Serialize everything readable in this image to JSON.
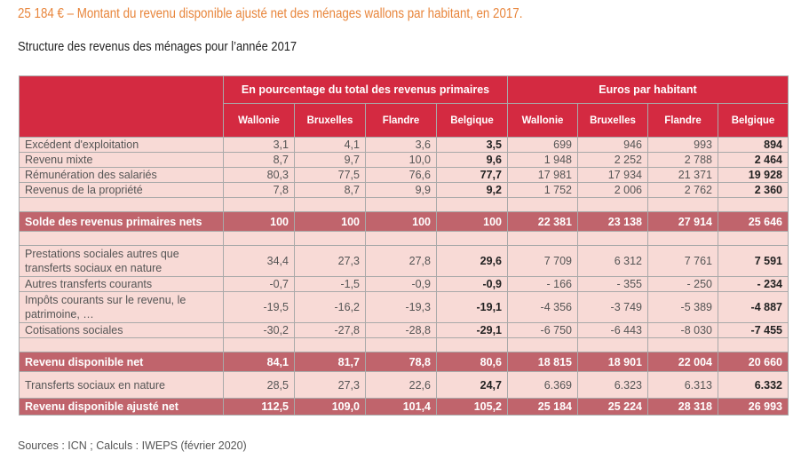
{
  "headline": "25 184 € – Montant du revenu disponible ajusté net des ménages wallons par habitant, en 2017.",
  "subtitle": "Structure des revenus des ménages pour l’année 2017",
  "source": "Sources : ICN ; Calculs : IWEPS (février 2020)",
  "table": {
    "group_headers": [
      "En pourcentage du total des revenus primaires",
      "Euros par habitant"
    ],
    "columns": [
      "Wallonie",
      "Bruxelles",
      "Flandre",
      "Belgique",
      "Wallonie",
      "Bruxelles",
      "Flandre",
      "Belgique"
    ],
    "rows": [
      {
        "label": "Excédent d'exploitation",
        "values": [
          "3,1",
          "4,1",
          "3,6",
          "3,5",
          "699",
          "946",
          "993",
          "894"
        ]
      },
      {
        "label": "Revenu mixte",
        "values": [
          "8,7",
          "9,7",
          "10,0",
          "9,6",
          "1 948",
          "2 252",
          "2 788",
          "2 464"
        ]
      },
      {
        "label": "Rémunération des salariés",
        "values": [
          "80,3",
          "77,5",
          "76,6",
          "77,7",
          "17 981",
          "17 934",
          "21 371",
          "19 928"
        ]
      },
      {
        "label": "Revenus de la propriété",
        "values": [
          "7,8",
          "8,7",
          "9,9",
          "9,2",
          "1 752",
          "2 006",
          "2 762",
          "2 360"
        ]
      },
      {
        "label": "Solde des revenus primaires nets",
        "values": [
          "100",
          "100",
          "100",
          "100",
          "22 381",
          "23 138",
          "27 914",
          "25 646"
        ]
      },
      {
        "label": "Prestations sociales autres que transferts sociaux en nature",
        "values": [
          "34,4",
          "27,3",
          "27,8",
          "29,6",
          "7 709",
          "6 312",
          "7 761",
          "7 591"
        ]
      },
      {
        "label": "Autres transferts courants",
        "values": [
          "-0,7",
          "-1,5",
          "-0,9",
          "-0,9",
          "- 166",
          "- 355",
          "- 250",
          "- 234"
        ]
      },
      {
        "label": "Impôts courants sur le revenu, le patrimoine, …",
        "values": [
          "-19,5",
          "-16,2",
          "-19,3",
          "-19,1",
          "-4 356",
          "-3 749",
          "-5 389",
          "-4 887"
        ]
      },
      {
        "label": "Cotisations sociales",
        "values": [
          "-30,2",
          "-27,8",
          "-28,8",
          "-29,1",
          "-6 750",
          "-6 443",
          "-8 030",
          "-7 455"
        ]
      },
      {
        "label": "Revenu disponible net",
        "values": [
          "84,1",
          "81,7",
          "78,8",
          "80,6",
          "18 815",
          "18 901",
          "22 004",
          "20 660"
        ]
      },
      {
        "label": "Transferts sociaux en nature",
        "values": [
          "28,5",
          "27,3",
          "22,6",
          "24,7",
          "6.369",
          "6.323",
          "6.313",
          "6.332"
        ]
      },
      {
        "label": "Revenu disponible ajusté net",
        "values": [
          "112,5",
          "109,0",
          "101,4",
          "105,2",
          "25 184",
          "25 224",
          "28 318",
          "26 993"
        ]
      }
    ]
  },
  "colors": {
    "headline": "#e8853b",
    "header_bg": "#d42a41",
    "row_bg": "#f8dad6",
    "total_bg": "#c0646c"
  }
}
